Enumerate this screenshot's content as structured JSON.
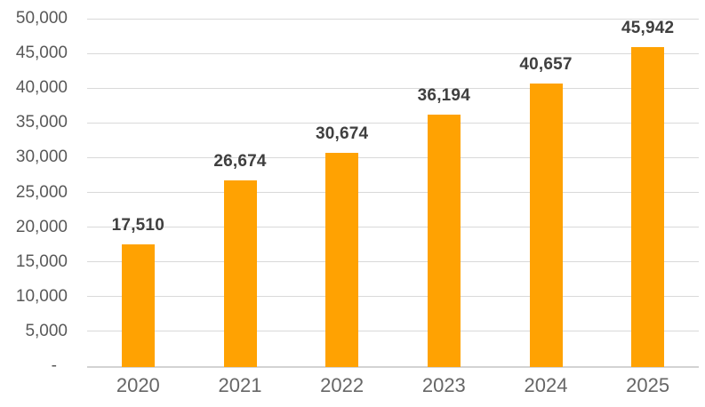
{
  "chart_data": {
    "type": "bar",
    "title": "",
    "xlabel": "",
    "ylabel": "",
    "categories": [
      "2020",
      "2021",
      "2022",
      "2023",
      "2024",
      "2025"
    ],
    "values": [
      17510,
      26674,
      30674,
      36194,
      40657,
      45942
    ],
    "data_labels": [
      "17,510",
      "26,674",
      "30,674",
      "36,194",
      "40,657",
      "45,942"
    ],
    "ylim": [
      0,
      50000
    ],
    "y_tick_step": 5000,
    "y_ticks": [
      {
        "value": 50000,
        "label": "50,000"
      },
      {
        "value": 45000,
        "label": "45,000"
      },
      {
        "value": 40000,
        "label": "40,000"
      },
      {
        "value": 35000,
        "label": "35,000"
      },
      {
        "value": 30000,
        "label": "30,000"
      },
      {
        "value": 25000,
        "label": "25,000"
      },
      {
        "value": 20000,
        "label": "20,000"
      },
      {
        "value": 15000,
        "label": "15,000"
      },
      {
        "value": 10000,
        "label": "10,000"
      },
      {
        "value": 5000,
        "label": "5,000"
      },
      {
        "value": 0,
        "label": "-"
      }
    ],
    "grid": true,
    "legend": false,
    "colors": {
      "bar": "#FFA202",
      "gridline": "#D9D9D9",
      "axis_line": "#D3D3D3",
      "value_label": "#3F3F3F",
      "y_tick_label": "#595959",
      "x_tick_label": "#666666",
      "background": "#FFFFFF"
    }
  }
}
